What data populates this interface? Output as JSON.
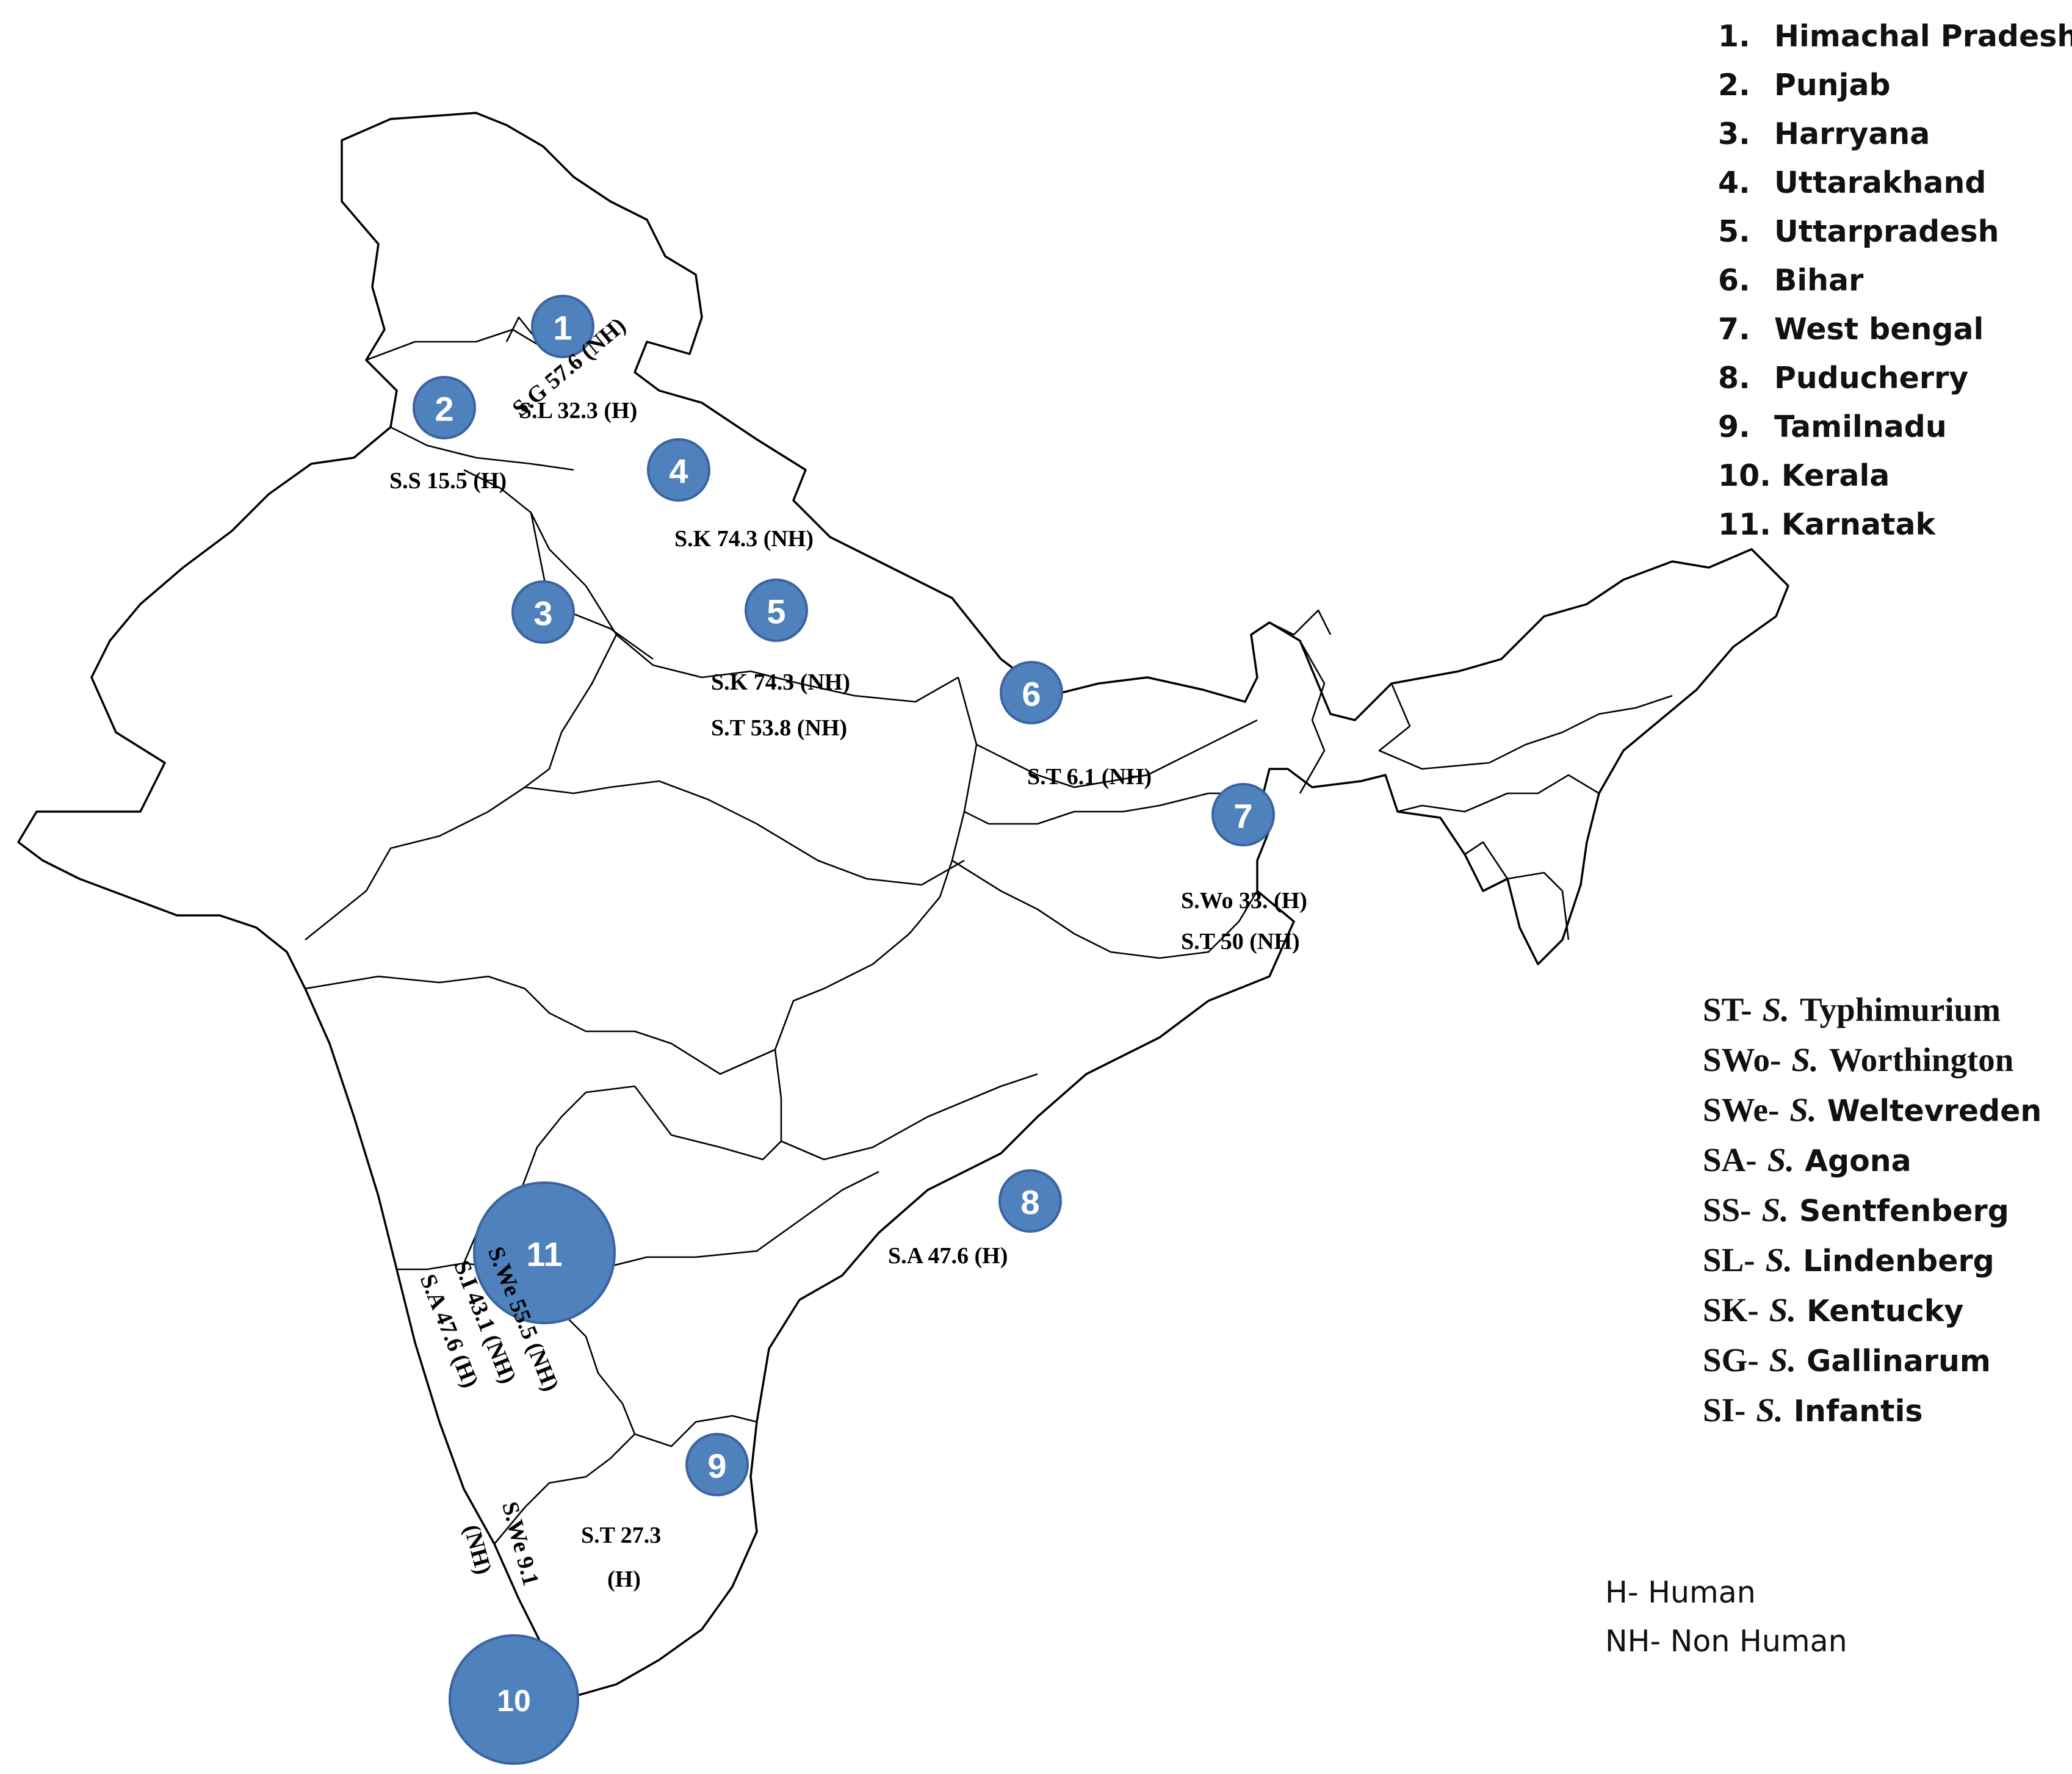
{
  "state_legend": [
    {
      "num": "1.",
      "name": "Himachal Pradesh"
    },
    {
      "num": "2.",
      "name": "Punjab"
    },
    {
      "num": "3.",
      "name": "Harryana"
    },
    {
      "num": "4.",
      "name": "Uttarakhand"
    },
    {
      "num": "5.",
      "name": "Uttarpradesh"
    },
    {
      "num": "6.",
      "name": "Bihar"
    },
    {
      "num": "7.",
      "name": "West bengal"
    },
    {
      "num": "8.",
      "name": "Puducherry"
    },
    {
      "num": "9.",
      "name": "Tamilnadu"
    },
    {
      "num": "10.",
      "name": "Kerala"
    },
    {
      "num": "11.",
      "name": "Karnatak"
    }
  ],
  "serotype_legend": [
    {
      "code": "ST-",
      "genus": "S.",
      "name": "Typhimurium"
    },
    {
      "code": "SWo-",
      "genus": "S.",
      "name": "Worthington"
    },
    {
      "code": "SWe-",
      "genus": "S.",
      "name": "Weltevreden"
    },
    {
      "code": "SA-",
      "genus": "S.",
      "name": "Agona"
    },
    {
      "code": "SS-",
      "genus": "S.",
      "name": "Sentfenberg"
    },
    {
      "code": "SL-",
      "genus": "S.",
      "name": "Lindenberg"
    },
    {
      "code": "SK-",
      "genus": "S.",
      "name": "Kentucky"
    },
    {
      "code": "SG-",
      "genus": "S.",
      "name": "Gallinarum"
    },
    {
      "code": "SI-",
      "genus": "S.",
      "name": "Infantis"
    }
  ],
  "host_legend": [
    "H- Human",
    "NH- Non Human"
  ],
  "markers": [
    "1",
    "2",
    "3",
    "4",
    "5",
    "6",
    "7",
    "8",
    "9",
    "10",
    "11"
  ],
  "annotations": {
    "hp": "S.L 32.3 (H)",
    "punjab": "S.S  15.5 (H)",
    "haryana": "S.G 57.6 (NH)",
    "uttarakhand": "S.K 74.3 (NH)",
    "up1": "S.K 74.3 (NH)",
    "up2": "S.T  53.8 (NH)",
    "bihar": "S.T 6.1  (NH)",
    "wb1": "S.Wo 33. (H)",
    "wb2": "S.T 50 (NH)",
    "puducherry": "S.A  47.6 (H)",
    "karnataka1": "S.We  55.5 (NH)",
    "karnataka2": "S.I 43.1 (NH)",
    "karnataka3": "S.A 47.6 (H)",
    "tn1": "S.T   27.3",
    "tn2": "(H)",
    "kerala1": "S.We 9.1",
    "kerala2": "(NH)"
  },
  "colors": {
    "marker_fill": "#4f81bd",
    "outline": "#000000"
  }
}
